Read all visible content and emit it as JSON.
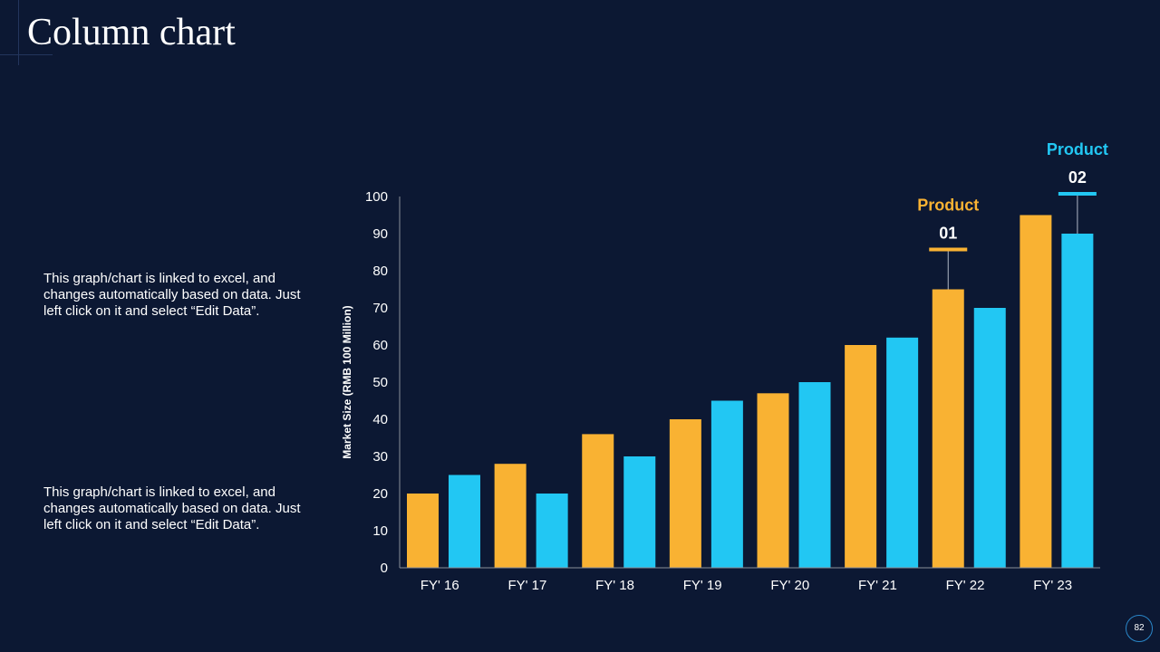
{
  "slide": {
    "title": "Column chart",
    "page_number": "82",
    "descriptions": [
      "This graph/chart is linked to excel, and changes automatically based on data. Just left click on it and select “Edit Data”.",
      "This graph/chart is linked to excel, and changes automatically based on data. Just left click on it and select “Edit Data”."
    ]
  },
  "colors": {
    "background": "#0c1833",
    "product_01": "#f9b233",
    "product_02": "#22c7f3",
    "axis": "#8a8f99",
    "text": "#ffffff"
  },
  "chart_data": {
    "type": "bar",
    "title": "",
    "xlabel": "",
    "ylabel": "Market Size (RMB 100 Million)",
    "ylim": [
      0,
      100
    ],
    "yticks": [
      0,
      10,
      20,
      30,
      40,
      50,
      60,
      70,
      80,
      90,
      100
    ],
    "categories": [
      "FY' 16",
      "FY' 17",
      "FY' 18",
      "FY' 19",
      "FY' 20",
      "FY' 21",
      "FY' 22",
      "FY' 23"
    ],
    "series": [
      {
        "name": "Product 01",
        "values": [
          20,
          28,
          36,
          40,
          47,
          60,
          75,
          95
        ]
      },
      {
        "name": "Product 02",
        "values": [
          25,
          20,
          30,
          45,
          50,
          62,
          70,
          90
        ]
      }
    ],
    "annotations": [
      {
        "series": 0,
        "category": "FY' 22",
        "label": "Product",
        "number": "01"
      },
      {
        "series": 1,
        "category": "FY' 23",
        "label": "Product",
        "number": "02"
      }
    ]
  }
}
